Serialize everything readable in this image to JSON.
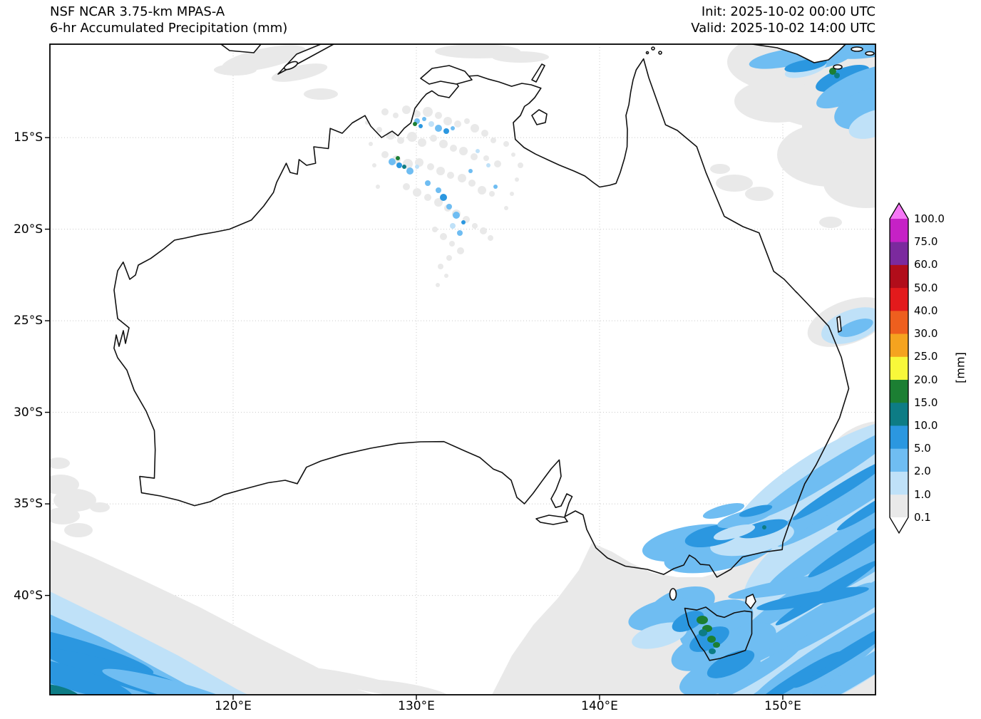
{
  "figure": {
    "title_line1": "NSF NCAR 3.75-km MPAS-A",
    "title_line2": "6-hr Accumulated Precipitation (mm)",
    "init_line": "Init: 2025-10-02 00:00 UTC",
    "valid_line": "Valid: 2025-10-02 14:00 UTC"
  },
  "axes": {
    "x_ticks": [
      "120°E",
      "130°E",
      "140°E",
      "150°E"
    ],
    "y_ticks": [
      "15°S",
      "20°S",
      "25°S",
      "30°S",
      "35°S",
      "40°S"
    ]
  },
  "colorbar": {
    "unit": "[mm]",
    "ticks": [
      "100.0",
      "75.0",
      "60.0",
      "50.0",
      "40.0",
      "30.0",
      "25.0",
      "20.0",
      "15.0",
      "10.0",
      "5.0",
      "2.0",
      "1.0",
      "0.1"
    ],
    "segment_colors": [
      "#e9e9e9",
      "#bfe1f8",
      "#6fbdf2",
      "#2b97e0",
      "#0d7c85",
      "#1c7f33",
      "#f8f83a",
      "#f5a31f",
      "#ee5f1e",
      "#e31a1c",
      "#b10d1a",
      "#7b2a9e",
      "#c621c6"
    ],
    "over_color": "#f577f5",
    "under_color": "#ffffff",
    "outline_color": "#000000"
  },
  "chart_data": {
    "type": "map",
    "model": "NSF NCAR 3.75-km MPAS-A",
    "title": "6-hr Accumulated Precipitation (mm)",
    "init": "2025-10-02 00:00 UTC",
    "valid": "2025-10-02 14:00 UTC",
    "unit": "mm",
    "levels": [
      0.1,
      1.0,
      2.0,
      5.0,
      10.0,
      15.0,
      20.0,
      25.0,
      30.0,
      40.0,
      50.0,
      60.0,
      75.0,
      100.0
    ],
    "lon_ticks_deg_e": [
      120,
      130,
      140,
      150
    ],
    "lat_ticks_deg_s": [
      15,
      20,
      25,
      30,
      35,
      40
    ]
  }
}
